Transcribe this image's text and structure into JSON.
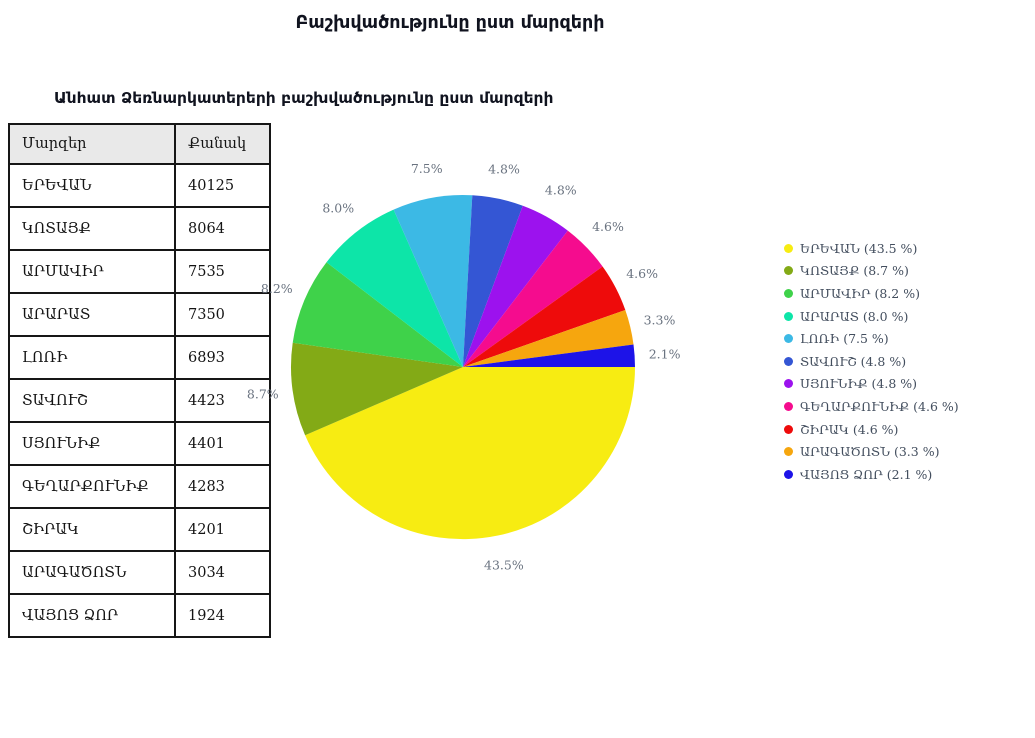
{
  "page": {
    "title": "Բաշխվածությունը ըստ մարզերի",
    "subtitle": "Անհատ Ձեռնարկատերերի բաշխվածությունը ըստ մարզերի"
  },
  "table": {
    "headers": [
      "Մարզեր",
      "Քանակ"
    ],
    "rows": [
      [
        "ԵՐԵՎԱՆ",
        "40125"
      ],
      [
        "ԿՈՏԱՅՔ",
        "8064"
      ],
      [
        "ԱՐՄԱՎԻՐ",
        "7535"
      ],
      [
        "ԱՐԱՐԱՏ",
        "7350"
      ],
      [
        "ԼՈՌԻ",
        "6893"
      ],
      [
        "ՏԱՎՈՒՇ",
        "4423"
      ],
      [
        "ՍՅՈՒՆԻՔ",
        "4401"
      ],
      [
        "ԳԵՂԱՐՔՈՒՆԻՔ",
        "4283"
      ],
      [
        "ՇԻՐԱԿ",
        "4201"
      ],
      [
        "ԱՐԱԳԱԾՈՏՆ",
        "3034"
      ],
      [
        "ՎԱՅՈՑ ՁՈՐ",
        "1924"
      ]
    ]
  },
  "chart_data": {
    "type": "pie",
    "title": "Անհատ Ձեռնարկատերերի բաշխվածությունը ըստ մարզերի",
    "categories": [
      "ԵՐԵՎԱՆ",
      "ԿՈՏԱՅՔ",
      "ԱՐՄԱՎԻՐ",
      "ԱՐԱՐԱՏ",
      "ԼՈՌԻ",
      "ՏԱՎՈՒՇ",
      "ՍՅՈՒՆԻՔ",
      "ԳԵՂԱՐՔՈՒՆԻՔ",
      "ՇԻՐԱԿ",
      "ԱՐԱԳԱԾՈՏՆ",
      "ՎԱՅՈՑ ՁՈՐ"
    ],
    "values": [
      40125,
      8064,
      7535,
      7350,
      6893,
      4423,
      4401,
      4283,
      4201,
      3034,
      1924
    ],
    "percents": [
      43.5,
      8.7,
      8.2,
      8.0,
      7.5,
      4.8,
      4.8,
      4.6,
      4.6,
      3.3,
      2.1
    ],
    "slice_labels": [
      "43.5%",
      "8.7%",
      "8.2%",
      "8.0%",
      "7.5%",
      "4.8%",
      "4.8%",
      "4.6%",
      "4.6%",
      "3.3%",
      "2.1%"
    ],
    "colors": [
      "#f7ec12",
      "#83aa16",
      "#3fd24a",
      "#0de5a8",
      "#3cb9e5",
      "#3456d4",
      "#9c12ee",
      "#f50c8e",
      "#ee0b0b",
      "#f6a60e",
      "#1d13e8"
    ],
    "start_angle_deg": 0,
    "direction": "clockwise",
    "grid": false,
    "label_color": "#6a7380",
    "legend": {
      "position": "right",
      "labels": [
        "ԵՐԵՎԱՆ (43.5 %)",
        "ԿՈՏԱՅՔ (8.7 %)",
        "ԱՐՄԱՎԻՐ (8.2 %)",
        "ԱՐԱՐԱՏ (8.0 %)",
        "ԼՈՌԻ (7.5 %)",
        "ՏԱՎՈՒՇ (4.8 %)",
        "ՍՅՈՒՆԻՔ (4.8 %)",
        "ԳԵՂԱՐՔՈՒՆԻՔ (4.6 %)",
        "ՇԻՐԱԿ (4.6 %)",
        "ԱՐԱԳԱԾՈՏՆ (3.3 %)",
        "ՎԱՅՈՑ ՁՈՐ (2.1 %)"
      ]
    }
  }
}
